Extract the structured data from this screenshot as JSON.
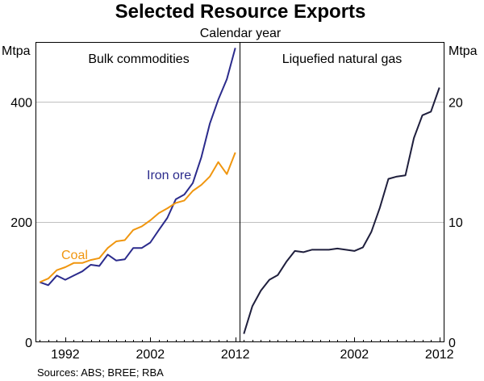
{
  "chart_data": {
    "type": "line",
    "title": "Selected Resource Exports",
    "subtitle": "Calendar year",
    "source": "Sources: ABS; BREE; RBA",
    "left_unit": "Mtpa",
    "right_unit": "Mtpa",
    "panels": [
      {
        "title": "Bulk commodities",
        "ylim": [
          0,
          500
        ],
        "yticks": [
          "0",
          "200",
          "400"
        ],
        "ytick_values": [
          0,
          200,
          400
        ],
        "xlim": [
          1988.5,
          2012.5
        ],
        "xticks": [
          "1992",
          "2002",
          "2012"
        ],
        "xtick_values": [
          1992,
          2002,
          2012
        ],
        "series": [
          {
            "name": "Iron ore",
            "label": "Iron ore",
            "color": "#2b2b8c",
            "x": [
              1989,
              1990,
              1991,
              1992,
              1993,
              1994,
              1995,
              1996,
              1997,
              1998,
              1999,
              2000,
              2001,
              2002,
              2003,
              2004,
              2005,
              2006,
              2007,
              2008,
              2009,
              2010,
              2011,
              2012
            ],
            "values": [
              100,
              95,
              111,
              104,
              111,
              118,
              129,
              127,
              146,
              136,
              138,
              157,
              157,
              166,
              187,
              207,
              238,
              246,
              265,
              308,
              364,
              404,
              438,
              490
            ]
          },
          {
            "name": "Coal",
            "label": "Coal",
            "color": "#f0960f",
            "x": [
              1989,
              1990,
              1991,
              1992,
              1993,
              1994,
              1995,
              1996,
              1997,
              1998,
              1999,
              2000,
              2001,
              2002,
              2003,
              2004,
              2005,
              2006,
              2007,
              2008,
              2009,
              2010,
              2011,
              2012
            ],
            "values": [
              100,
              106,
              120,
              125,
              132,
              132,
              137,
              140,
              157,
              168,
              170,
              187,
              193,
              203,
              215,
              223,
              232,
              236,
              252,
              262,
              276,
              300,
              280,
              316
            ]
          }
        ]
      },
      {
        "title": "Liquefied natural gas",
        "ylim": [
          0,
          25
        ],
        "yticks": [
          "0",
          "10",
          "20"
        ],
        "ytick_values": [
          0,
          10,
          20
        ],
        "xlim": [
          1988.5,
          2012.5
        ],
        "xticks": [
          "2002",
          "2012"
        ],
        "xtick_values": [
          2002,
          2012
        ],
        "series": [
          {
            "name": "Liquefied natural gas",
            "color": "#1f1f3d",
            "x": [
              1989,
              1990,
              1991,
              1992,
              1993,
              1994,
              1995,
              1996,
              1997,
              1998,
              1999,
              2000,
              2001,
              2002,
              2003,
              2004,
              2005,
              2006,
              2007,
              2008,
              2009,
              2010,
              2011,
              2012
            ],
            "values": [
              0.7,
              3.0,
              4.3,
              5.2,
              5.6,
              6.7,
              7.6,
              7.5,
              7.7,
              7.7,
              7.7,
              7.8,
              7.7,
              7.6,
              7.9,
              9.2,
              11.2,
              13.6,
              13.8,
              13.9,
              17.0,
              18.9,
              19.2,
              21.2
            ]
          }
        ]
      }
    ]
  }
}
